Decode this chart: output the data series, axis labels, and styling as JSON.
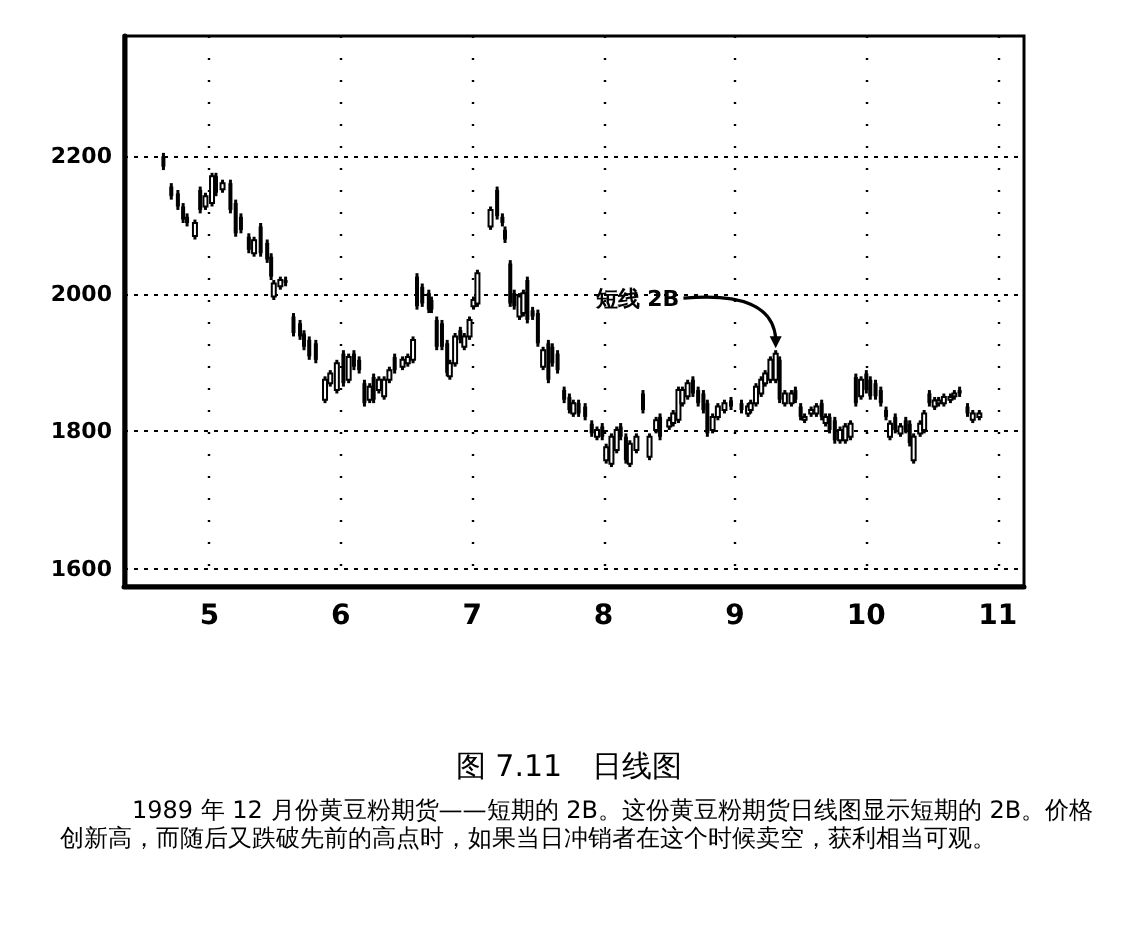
{
  "chart_data": {
    "type": "candlestick",
    "title": "图 7.11　日线图",
    "annotations": [
      {
        "text": "短线 2B",
        "x": 9.31,
        "y": 1918
      },
      "1989 年 12 月份黄豆粉期货——短期的 2B。这份黄豆粉期货日线图显示短期的 2B。价格创新高，而随后又跌破先前的高点时，如果当日冲销者在这个时候卖空，获利相当可观。"
    ],
    "x": [
      4.65,
      4.71,
      4.76,
      4.8,
      4.83,
      4.89,
      4.93,
      4.97,
      5.02,
      5.05,
      5.1,
      5.16,
      5.2,
      5.24,
      5.3,
      5.34,
      5.39,
      5.44,
      5.47,
      5.49,
      5.54,
      5.58,
      5.64,
      5.69,
      5.72,
      5.76,
      5.81,
      5.88,
      5.92,
      5.97,
      6.02,
      6.06,
      6.1,
      6.14,
      6.18,
      6.22,
      6.25,
      6.29,
      6.33,
      6.37,
      6.41,
      6.47,
      6.51,
      6.55,
      6.58,
      6.62,
      6.67,
      6.69,
      6.73,
      6.77,
      6.81,
      6.83,
      6.87,
      6.91,
      6.94,
      6.98,
      7.01,
      7.04,
      7.14,
      7.19,
      7.23,
      7.25,
      7.29,
      7.32,
      7.36,
      7.39,
      7.42,
      7.46,
      7.5,
      7.54,
      7.58,
      7.61,
      7.65,
      7.7,
      7.74,
      7.77,
      7.81,
      7.86,
      7.91,
      7.95,
      7.99,
      8.02,
      8.06,
      8.1,
      8.13,
      8.17,
      8.2,
      8.25,
      8.3,
      8.35,
      8.4,
      8.43,
      8.5,
      8.53,
      8.57,
      8.6,
      8.64,
      8.68,
      8.72,
      8.76,
      8.79,
      8.83,
      8.87,
      8.92,
      8.97,
      9.05,
      9.1,
      9.12,
      9.16,
      9.2,
      9.23,
      9.27,
      9.31,
      9.34,
      9.38,
      9.43,
      9.46,
      9.5,
      9.53,
      9.58,
      9.62,
      9.66,
      9.69,
      9.72,
      9.76,
      9.8,
      9.84,
      9.88,
      9.92,
      9.96,
      10.0,
      10.03,
      10.07,
      10.11,
      10.15,
      10.18,
      10.22,
      10.26,
      10.3,
      10.33,
      10.36,
      10.41,
      10.44,
      10.48,
      10.52,
      10.55,
      10.59,
      10.64,
      10.67,
      10.71,
      10.77,
      10.81,
      10.86
    ],
    "ohlc": [
      [
        2200,
        2205,
        2180,
        2185
      ],
      [
        2156,
        2161,
        2137,
        2142
      ],
      [
        2146,
        2151,
        2122,
        2127
      ],
      [
        2127,
        2132,
        2103,
        2108
      ],
      [
        2112,
        2117,
        2098,
        2103
      ],
      [
        2084,
        2108,
        2079,
        2103
      ],
      [
        2151,
        2156,
        2117,
        2122
      ],
      [
        2127,
        2147,
        2122,
        2142
      ],
      [
        2132,
        2176,
        2127,
        2171
      ],
      [
        2171,
        2176,
        2142,
        2147
      ],
      [
        2152,
        2166,
        2147,
        2161
      ],
      [
        2161,
        2166,
        2117,
        2122
      ],
      [
        2132,
        2137,
        2083,
        2088
      ],
      [
        2112,
        2117,
        2088,
        2093
      ],
      [
        2083,
        2088,
        2059,
        2064
      ],
      [
        2059,
        2083,
        2054,
        2078
      ],
      [
        2098,
        2103,
        2054,
        2059
      ],
      [
        2074,
        2079,
        2045,
        2050
      ],
      [
        2054,
        2059,
        2020,
        2025
      ],
      [
        1996,
        2020,
        1991,
        2015
      ],
      [
        2011,
        2025,
        2006,
        2020
      ],
      [
        2020,
        2025,
        2011,
        2016
      ],
      [
        1967,
        1972,
        1938,
        1943
      ],
      [
        1957,
        1962,
        1933,
        1938
      ],
      [
        1942,
        1947,
        1918,
        1923
      ],
      [
        1933,
        1938,
        1904,
        1909
      ],
      [
        1928,
        1933,
        1899,
        1904
      ],
      [
        1846,
        1880,
        1841,
        1875
      ],
      [
        1870,
        1889,
        1865,
        1884
      ],
      [
        1860,
        1904,
        1855,
        1899
      ],
      [
        1913,
        1918,
        1865,
        1870
      ],
      [
        1875,
        1913,
        1870,
        1908
      ],
      [
        1913,
        1918,
        1889,
        1894
      ],
      [
        1904,
        1909,
        1884,
        1889
      ],
      [
        1870,
        1875,
        1836,
        1841
      ],
      [
        1846,
        1870,
        1841,
        1865
      ],
      [
        1879,
        1884,
        1841,
        1846
      ],
      [
        1860,
        1880,
        1855,
        1875
      ],
      [
        1851,
        1880,
        1846,
        1875
      ],
      [
        1875,
        1894,
        1870,
        1889
      ],
      [
        1908,
        1913,
        1884,
        1889
      ],
      [
        1894,
        1909,
        1889,
        1904
      ],
      [
        1899,
        1913,
        1894,
        1908
      ],
      [
        1904,
        1938,
        1899,
        1933
      ],
      [
        2025,
        2030,
        1977,
        1982
      ],
      [
        2010,
        2015,
        1981,
        1986
      ],
      [
        2001,
        2006,
        1972,
        1977
      ],
      [
        1991,
        1996,
        1972,
        1977
      ],
      [
        1962,
        1967,
        1918,
        1923
      ],
      [
        1957,
        1962,
        1918,
        1923
      ],
      [
        1928,
        1933,
        1880,
        1885
      ],
      [
        1880,
        1904,
        1875,
        1899
      ],
      [
        1899,
        1943,
        1894,
        1938
      ],
      [
        1947,
        1952,
        1928,
        1933
      ],
      [
        1923,
        1943,
        1918,
        1938
      ],
      [
        1938,
        1967,
        1933,
        1962
      ],
      [
        1982,
        1996,
        1977,
        1991
      ],
      [
        1986,
        2035,
        1981,
        2030
      ],
      [
        2098,
        2127,
        2093,
        2122
      ],
      [
        2151,
        2156,
        2108,
        2113
      ],
      [
        2112,
        2117,
        2098,
        2103
      ],
      [
        2093,
        2098,
        2074,
        2079
      ],
      [
        2044,
        2049,
        1981,
        1986
      ],
      [
        2001,
        2006,
        1977,
        1982
      ],
      [
        1967,
        2001,
        1962,
        1996
      ],
      [
        1972,
        2006,
        1967,
        2001
      ],
      [
        2020,
        2025,
        1957,
        1962
      ],
      [
        1976,
        1981,
        1962,
        1967
      ],
      [
        1972,
        1977,
        1923,
        1928
      ],
      [
        1894,
        1923,
        1889,
        1918
      ],
      [
        1928,
        1933,
        1870,
        1875
      ],
      [
        1923,
        1928,
        1894,
        1899
      ],
      [
        1913,
        1918,
        1884,
        1889
      ],
      [
        1860,
        1865,
        1841,
        1846
      ],
      [
        1850,
        1855,
        1826,
        1831
      ],
      [
        1826,
        1846,
        1821,
        1841
      ],
      [
        1841,
        1846,
        1821,
        1826
      ],
      [
        1836,
        1841,
        1816,
        1821
      ],
      [
        1811,
        1816,
        1792,
        1797
      ],
      [
        1792,
        1807,
        1787,
        1802
      ],
      [
        1807,
        1812,
        1787,
        1792
      ],
      [
        1758,
        1782,
        1753,
        1777
      ],
      [
        1753,
        1797,
        1748,
        1792
      ],
      [
        1773,
        1807,
        1768,
        1802
      ],
      [
        1807,
        1812,
        1787,
        1792
      ],
      [
        1792,
        1797,
        1753,
        1758
      ],
      [
        1753,
        1787,
        1748,
        1782
      ],
      [
        1773,
        1797,
        1768,
        1792
      ],
      [
        1855,
        1860,
        1826,
        1831
      ],
      [
        1763,
        1797,
        1758,
        1792
      ],
      [
        1802,
        1821,
        1797,
        1816
      ],
      [
        1821,
        1826,
        1787,
        1792
      ],
      [
        1807,
        1821,
        1802,
        1816
      ],
      [
        1812,
        1831,
        1807,
        1826
      ],
      [
        1817,
        1865,
        1812,
        1860
      ],
      [
        1841,
        1865,
        1836,
        1860
      ],
      [
        1851,
        1875,
        1846,
        1870
      ],
      [
        1875,
        1880,
        1850,
        1855
      ],
      [
        1860,
        1865,
        1836,
        1841
      ],
      [
        1855,
        1860,
        1826,
        1831
      ],
      [
        1841,
        1846,
        1792,
        1797
      ],
      [
        1802,
        1826,
        1797,
        1821
      ],
      [
        1821,
        1841,
        1816,
        1836
      ],
      [
        1831,
        1846,
        1826,
        1841
      ],
      [
        1845,
        1850,
        1831,
        1836
      ],
      [
        1841,
        1846,
        1826,
        1831
      ],
      [
        1826,
        1841,
        1821,
        1836
      ],
      [
        1831,
        1846,
        1826,
        1841
      ],
      [
        1841,
        1870,
        1836,
        1865
      ],
      [
        1855,
        1880,
        1850,
        1875
      ],
      [
        1870,
        1889,
        1865,
        1884
      ],
      [
        1875,
        1909,
        1870,
        1904
      ],
      [
        1875,
        1918,
        1870,
        1913
      ],
      [
        1904,
        1909,
        1841,
        1846
      ],
      [
        1841,
        1860,
        1836,
        1855
      ],
      [
        1841,
        1860,
        1836,
        1855
      ],
      [
        1860,
        1865,
        1841,
        1846
      ],
      [
        1836,
        1841,
        1816,
        1821
      ],
      [
        1817,
        1826,
        1812,
        1821
      ],
      [
        1826,
        1836,
        1821,
        1831
      ],
      [
        1826,
        1841,
        1821,
        1836
      ],
      [
        1841,
        1846,
        1816,
        1821
      ],
      [
        1812,
        1826,
        1807,
        1821
      ],
      [
        1821,
        1826,
        1797,
        1802
      ],
      [
        1816,
        1821,
        1782,
        1787
      ],
      [
        1787,
        1807,
        1782,
        1802
      ],
      [
        1787,
        1812,
        1782,
        1807
      ],
      [
        1792,
        1816,
        1787,
        1811
      ],
      [
        1879,
        1884,
        1836,
        1841
      ],
      [
        1851,
        1880,
        1846,
        1875
      ],
      [
        1884,
        1889,
        1855,
        1860
      ],
      [
        1875,
        1880,
        1846,
        1851
      ],
      [
        1870,
        1875,
        1846,
        1851
      ],
      [
        1860,
        1865,
        1836,
        1841
      ],
      [
        1831,
        1836,
        1816,
        1821
      ],
      [
        1792,
        1816,
        1787,
        1811
      ],
      [
        1821,
        1826,
        1797,
        1802
      ],
      [
        1797,
        1812,
        1792,
        1807
      ],
      [
        1816,
        1821,
        1797,
        1802
      ],
      [
        1811,
        1816,
        1778,
        1783
      ],
      [
        1758,
        1797,
        1753,
        1792
      ],
      [
        1797,
        1816,
        1792,
        1811
      ],
      [
        1802,
        1831,
        1797,
        1826
      ],
      [
        1855,
        1860,
        1836,
        1841
      ],
      [
        1836,
        1850,
        1831,
        1845
      ],
      [
        1841,
        1850,
        1836,
        1845
      ],
      [
        1841,
        1855,
        1836,
        1850
      ],
      [
        1846,
        1855,
        1841,
        1850
      ],
      [
        1851,
        1860,
        1846,
        1855
      ],
      [
        1860,
        1865,
        1850,
        1855
      ],
      [
        1836,
        1841,
        1821,
        1826
      ],
      [
        1817,
        1831,
        1812,
        1826
      ],
      [
        1821,
        1831,
        1816,
        1826
      ]
    ],
    "color": "#000000",
    "xlim": [
      4.35,
      11.2
    ],
    "xticks": [
      5,
      6,
      7,
      8,
      9,
      10,
      11
    ],
    "ylim": [
      1575,
      2375
    ],
    "yticks": [
      1600,
      1800,
      2000,
      2200
    ],
    "grid": true
  }
}
